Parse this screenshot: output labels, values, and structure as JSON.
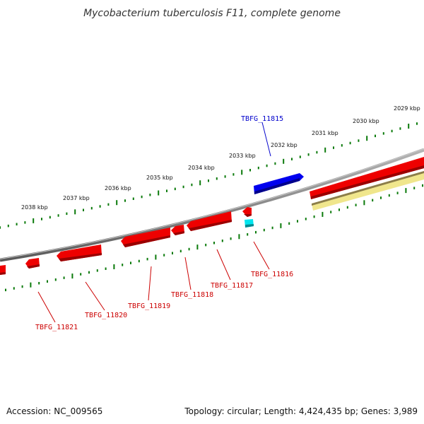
{
  "title": "Mycobacterium tuberculosis F11, complete genome",
  "footer": {
    "accession": "Accession: NC_009565",
    "summary": "Topology: circular; Length: 4,424,435 bp; Genes: 3,989"
  },
  "colors": {
    "forward_gene": "#0000ee",
    "reverse_gene": "#ee0000",
    "feature_cyan": "#00e5ee",
    "feature_tan": "#f0e68c",
    "ticks": "#0a7a0a",
    "backbone": "#8a8a8a"
  },
  "kbp_labels": [
    "2029 kbp",
    "2030 kbp",
    "2031 kbp",
    "2032 kbp",
    "2033 kbp",
    "2034 kbp",
    "2035 kbp",
    "2036 kbp",
    "2037 kbp",
    "2038 kbp"
  ],
  "gene_labels": [
    {
      "name": "TBFG_11815",
      "strand": "forward"
    },
    {
      "name": "TBFG_11816",
      "strand": "reverse"
    },
    {
      "name": "TBFG_11817",
      "strand": "reverse"
    },
    {
      "name": "TBFG_11818",
      "strand": "reverse"
    },
    {
      "name": "TBFG_11819",
      "strand": "reverse"
    },
    {
      "name": "TBFG_11820",
      "strand": "reverse"
    },
    {
      "name": "TBFG_11821",
      "strand": "reverse"
    }
  ]
}
